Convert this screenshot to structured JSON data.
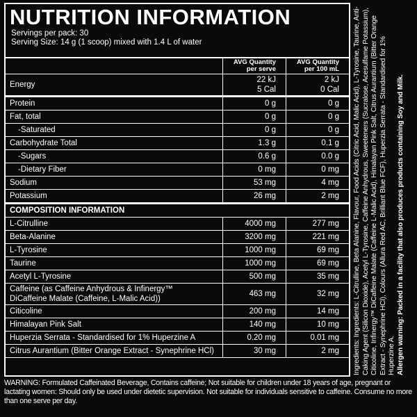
{
  "header": {
    "title": "NUTRITION INFORMATION",
    "servings": "Servings per pack: 30",
    "serving_size": "Serving Size: 14 g (1 scoop) mixed with 1.4 L of water"
  },
  "table": {
    "columns": [
      "AVG Quantity per serve",
      "AVG Quantity per 100 mL"
    ],
    "nutrition_rows": [
      [
        "Energy",
        [
          "22 kJ",
          "5 Cal"
        ],
        [
          "2 kJ",
          "0 Cal"
        ]
      ],
      [
        "Protein",
        "0 g",
        "0 g"
      ],
      [
        "Fat, total",
        "0 g",
        "0 g"
      ],
      [
        "-Saturated",
        "0 g",
        "0 g"
      ],
      [
        "Carbohydrate Total",
        "1.3 g",
        "0.1 g"
      ],
      [
        "-Sugars",
        "0.6 g",
        "0.0 g"
      ],
      [
        "-Dietary Fiber",
        "0 mg",
        "0 mg"
      ],
      [
        "Sodium",
        "53 mg",
        "4 mg"
      ],
      [
        "Potassium",
        "26 mg",
        "2 mg"
      ]
    ],
    "composition_title": "COMPOSITION INFORMATION",
    "composition_rows": [
      [
        "L-Citrulline",
        "4000 mg",
        "277 mg"
      ],
      [
        "Beta-Alanine",
        "3200 mg",
        "221 mg"
      ],
      [
        "L-Tyrosine",
        "1000 mg",
        "69 mg"
      ],
      [
        "Taurine",
        "1000 mg",
        "69 mg"
      ],
      [
        "Acetyl L-Tyrosine",
        "500 mg",
        "35 mg"
      ],
      [
        [
          "Caffeine (as Caffeine Anhydrous & Infinergy™",
          "DiCaffeine Malate (Caffeine, L-Malic Acid))"
        ],
        "463 mg",
        "32 mg"
      ],
      [
        "Citicoline",
        "200 mg",
        "14 mg"
      ],
      [
        "Himalayan Pink Salt",
        "140 mg",
        "10 mg"
      ],
      [
        "Huperzia Serrata - Standardised for 1% Huperzine A",
        "0.20 mg",
        "0.01 mg"
      ],
      [
        "Citrus Aurantium (Bitter Orange Extract - Synephrine HCl)",
        "30 mg",
        "2 mg"
      ]
    ]
  },
  "side": {
    "ingredients": "Ingredients: Ingredients: L-Citrulline, Beta Alanine, Flavour, Food Acids (Citric Acid, Malic Acid), L-Tyrosine, Taurine, Anti-Caking Agent (Silicon Dioxide), Acetyl L-Tyrosine, Caffeine Anhydrous, Sweeteners (Sucralose, Acesulfame Potassium), Citicoline, Infinergy™ DiCaffeine Malate (Caffeine L-Malic Acid), Himalayan Pink Salt, Citrus Aurantium (Bitter Orange Extract - Synephrine HCl), Colours (Allura Red AC, Brilliant Blue FCF), Huperzia Serrata - Standardised for 1% Huperzine A.",
    "allergen_label": "Allergen warning:",
    "allergen": "Packed in a facility that also produces products containing Soy and Milk."
  },
  "warning": "WARNING: Formulated Caffeinated Beverage, Contains caffeine; Not suitable for children under 18 years of age, pregnant or lactating women: Should only be used under dietetic supervision. Not suitable for individuals sensitive to caffeine. Consume no more than one serve per day."
}
